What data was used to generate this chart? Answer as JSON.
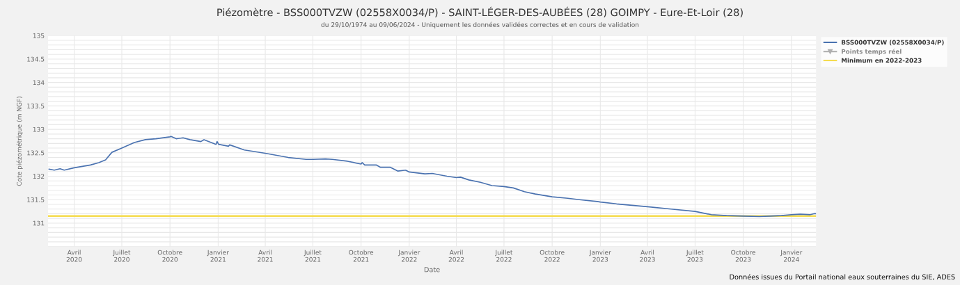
{
  "chart_data": {
    "type": "line",
    "title": "Piézomètre - BSS000TVZW (02558X0034/P) - SAINT-LÉGER-DES-AUBÉES (28) GOIMPY - Eure-Et-Loir (28)",
    "subtitle": "du 29/10/1974 au 09/06/2024 - Uniquement les données validées correctes et en cours de validation",
    "xlabel": "Date",
    "ylabel": "Cote piézométrique (m NGF)",
    "annotations": [
      "Données issues du Portail national eaux souterraines du SIE, ADES"
    ],
    "series": [
      {
        "name": "BSS000TVZW (02558X0034/P)",
        "color": "#4a72b0",
        "x": [
          "2020-02-13",
          "2020-02-23",
          "2020-03-05",
          "2020-03-13",
          "2020-04-01",
          "2020-05-02",
          "2020-05-18",
          "2020-05-31",
          "2020-06-12",
          "2020-07-01",
          "2020-07-25",
          "2020-08-15",
          "2020-09-04",
          "2020-10-01",
          "2020-10-03",
          "2020-10-13",
          "2020-10-26",
          "2020-11-08",
          "2020-11-29",
          "2020-12-05",
          "2020-12-28",
          "2020-12-30",
          "2021-01-02",
          "2021-01-21",
          "2021-01-23",
          "2021-02-20",
          "2021-04-01",
          "2021-05-15",
          "2021-06-18",
          "2021-07-01",
          "2021-07-25",
          "2021-08-07",
          "2021-09-05",
          "2021-10-01",
          "2021-10-03",
          "2021-10-08",
          "2021-10-30",
          "2021-11-07",
          "2021-11-26",
          "2021-12-10",
          "2021-12-25",
          "2022-01-01",
          "2022-01-31",
          "2022-02-14",
          "2022-03-14",
          "2022-04-01",
          "2022-04-09",
          "2022-04-25",
          "2022-05-17",
          "2022-06-08",
          "2022-07-01",
          "2022-07-19",
          "2022-08-09",
          "2022-08-30",
          "2022-10-01",
          "2022-10-31",
          "2022-11-22",
          "2022-12-26",
          "2023-01-01",
          "2023-02-01",
          "2023-04-01",
          "2023-05-16",
          "2023-07-01",
          "2023-08-01",
          "2023-08-30",
          "2023-10-01",
          "2023-11-01",
          "2023-11-22",
          "2023-12-13",
          "2024-01-01",
          "2024-01-18",
          "2024-02-06",
          "2024-02-13",
          "2024-02-17"
        ],
        "values": [
          132.15,
          132.13,
          132.16,
          132.13,
          132.18,
          132.24,
          132.29,
          132.35,
          132.51,
          132.6,
          132.72,
          132.78,
          132.8,
          132.84,
          132.85,
          132.8,
          132.82,
          132.78,
          132.74,
          132.78,
          132.68,
          132.74,
          132.68,
          132.64,
          132.67,
          132.56,
          132.49,
          132.4,
          132.36,
          132.36,
          132.37,
          132.36,
          132.32,
          132.26,
          132.29,
          132.24,
          132.24,
          132.19,
          132.19,
          132.11,
          132.13,
          132.09,
          132.05,
          132.06,
          132.0,
          131.97,
          131.98,
          131.92,
          131.87,
          131.8,
          131.78,
          131.75,
          131.67,
          131.62,
          131.56,
          131.53,
          131.5,
          131.46,
          131.45,
          131.41,
          131.35,
          131.3,
          131.25,
          131.18,
          131.16,
          131.15,
          131.14,
          131.15,
          131.16,
          131.18,
          131.19,
          131.18,
          131.2,
          131.2
        ]
      },
      {
        "name": "Points temps réel",
        "color": "#b0b0b0",
        "marker": "triangle"
      }
    ],
    "ref_lines": [
      {
        "axis": "y",
        "value": 131.15,
        "label": "Minimum en 2022-2023",
        "color": "#f5dc50"
      }
    ],
    "xlim": [
      "2020-02-11",
      "2024-02-17"
    ],
    "xticks": [
      {
        "value": "2020-04-01",
        "label": "Avril\n2020"
      },
      {
        "value": "2020-07-01",
        "label": "Juillet\n2020"
      },
      {
        "value": "2020-10-01",
        "label": "Octobre\n2020"
      },
      {
        "value": "2021-01-01",
        "label": "Janvier\n2021"
      },
      {
        "value": "2021-04-01",
        "label": "Avril\n2021"
      },
      {
        "value": "2021-07-01",
        "label": "Juillet\n2021"
      },
      {
        "value": "2021-10-01",
        "label": "Octobre\n2021"
      },
      {
        "value": "2022-01-01",
        "label": "Janvier\n2022"
      },
      {
        "value": "2022-04-01",
        "label": "Avril\n2022"
      },
      {
        "value": "2022-07-01",
        "label": "Juillet\n2022"
      },
      {
        "value": "2022-10-01",
        "label": "Octobre\n2022"
      },
      {
        "value": "2023-01-01",
        "label": "Janvier\n2023"
      },
      {
        "value": "2023-04-01",
        "label": "Avril\n2023"
      },
      {
        "value": "2023-07-01",
        "label": "Juillet\n2023"
      },
      {
        "value": "2023-10-01",
        "label": "Octobre\n2023"
      },
      {
        "value": "2024-01-01",
        "label": "Janvier\n2024"
      }
    ],
    "ylim": [
      130.5,
      135
    ],
    "yticks": [
      {
        "value": 130.5,
        "label": null
      },
      {
        "value": 130.6,
        "label": null
      },
      {
        "value": 130.7,
        "label": null
      },
      {
        "value": 130.8,
        "label": null
      },
      {
        "value": 130.9,
        "label": null
      },
      131,
      {
        "value": 131.1,
        "label": null
      },
      {
        "value": 131.2,
        "label": null
      },
      {
        "value": 131.3,
        "label": null
      },
      {
        "value": 131.4,
        "label": null
      },
      131.5,
      {
        "value": 131.6,
        "label": null
      },
      {
        "value": 131.7,
        "label": null
      },
      {
        "value": 131.8,
        "label": null
      },
      {
        "value": 131.9,
        "label": null
      },
      132,
      {
        "value": 132.1,
        "label": null
      },
      {
        "value": 132.2,
        "label": null
      },
      {
        "value": 132.3,
        "label": null
      },
      {
        "value": 132.4,
        "label": null
      },
      132.5,
      {
        "value": 132.6,
        "label": null
      },
      {
        "value": 132.7,
        "label": null
      },
      {
        "value": 132.8,
        "label": null
      },
      {
        "value": 132.9,
        "label": null
      },
      133,
      {
        "value": 133.1,
        "label": null
      },
      {
        "value": 133.2,
        "label": null
      },
      {
        "value": 133.3,
        "label": null
      },
      {
        "value": 133.4,
        "label": null
      },
      133.5,
      {
        "value": 133.6,
        "label": null
      },
      {
        "value": 133.7,
        "label": null
      },
      {
        "value": 133.8,
        "label": null
      },
      {
        "value": 133.9,
        "label": null
      },
      134,
      {
        "value": 134.1,
        "label": null
      },
      {
        "value": 134.2,
        "label": null
      },
      {
        "value": 134.3,
        "label": null
      },
      {
        "value": 134.4,
        "label": null
      },
      134.5,
      {
        "value": 134.6,
        "label": null
      },
      {
        "value": 134.7,
        "label": null
      },
      {
        "value": 134.8,
        "label": null
      },
      {
        "value": 134.9,
        "label": null
      },
      135
    ],
    "grid": true,
    "legend": "top right",
    "marker": "none",
    "line_style": "solid"
  }
}
